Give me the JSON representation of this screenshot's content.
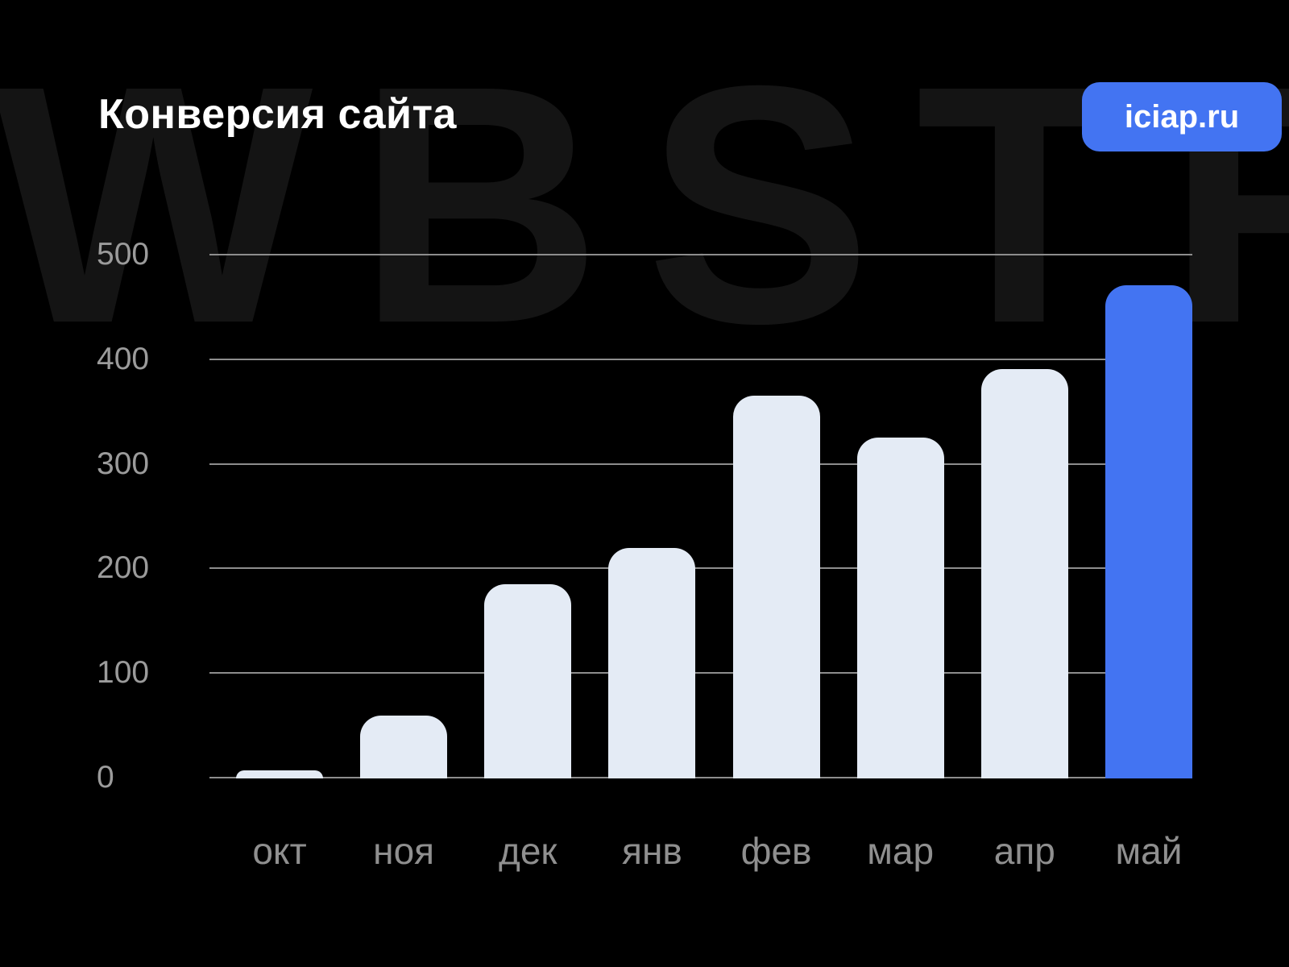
{
  "page": {
    "title": "Конверсия сайта",
    "badge_label": "iciap.ru",
    "watermark": "WBSTR"
  },
  "colors": {
    "background": "#000000",
    "accent_blue": "#4374F2",
    "bar_light": "#E4EBF5",
    "grid_line": "#8D8D8D",
    "y_tick_text": "#9B9B9B",
    "x_tick_text": "#8F8F8F",
    "watermark_text": "#141414",
    "title_text": "#FFFFFF"
  },
  "chart_data": {
    "type": "bar",
    "title": "Конверсия сайта",
    "categories": [
      "окт",
      "ноя",
      "дек",
      "янв",
      "фев",
      "мар",
      "апр",
      "май"
    ],
    "values": [
      8,
      60,
      185,
      220,
      365,
      325,
      390,
      470
    ],
    "bar_color": "#E4EBF5",
    "highlight_category": "май",
    "highlight_color": "#4374F2",
    "xlabel": "",
    "ylabel": "",
    "ylim": [
      0,
      500
    ],
    "yticks": [
      0,
      100,
      200,
      300,
      400,
      500
    ],
    "grid": "horizontal",
    "legend": "none"
  }
}
